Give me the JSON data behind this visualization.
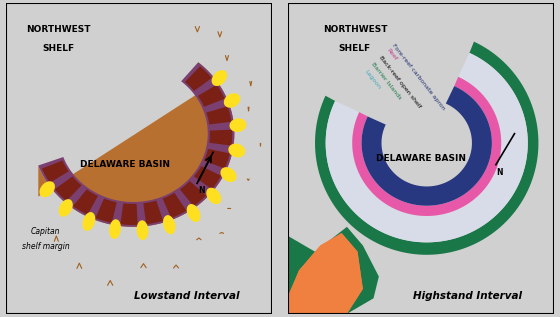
{
  "background_color": "#d0d0d0",
  "left_panel": {
    "bg_color": "#FFE020",
    "basin_color": "#B87030",
    "purple_color": "#7B4070",
    "dark_brown_color": "#7A2015",
    "sand_color": "#FFE020",
    "arrow_color": "#A06020",
    "title": "NORTHWEST\nSHELF",
    "basin_label": "DELAWARE BASIN",
    "margin_label": "Capitan\nshelf margin",
    "interval_label": "Lowstand Interval"
  },
  "right_panel": {
    "bg_color": "#58B8C0",
    "shelf_color": "#D8DCE8",
    "reef_color": "#E858A8",
    "navy_color": "#283880",
    "green_color": "#1A7848",
    "lagoon_color": "#80CCD8",
    "orange_color": "#F08040",
    "title": "NORTHWEST\nSHELF",
    "basin_label": "DELAWARE BASIN",
    "lagoon_label": "Lagoon",
    "barrier_label": "Barrier Islands",
    "backreef_label": "Back-reef open shelf",
    "reef_label": "Reef",
    "forereef_label": "Fore-reef carbonate apron",
    "interval_label": "Highstand Interval"
  }
}
